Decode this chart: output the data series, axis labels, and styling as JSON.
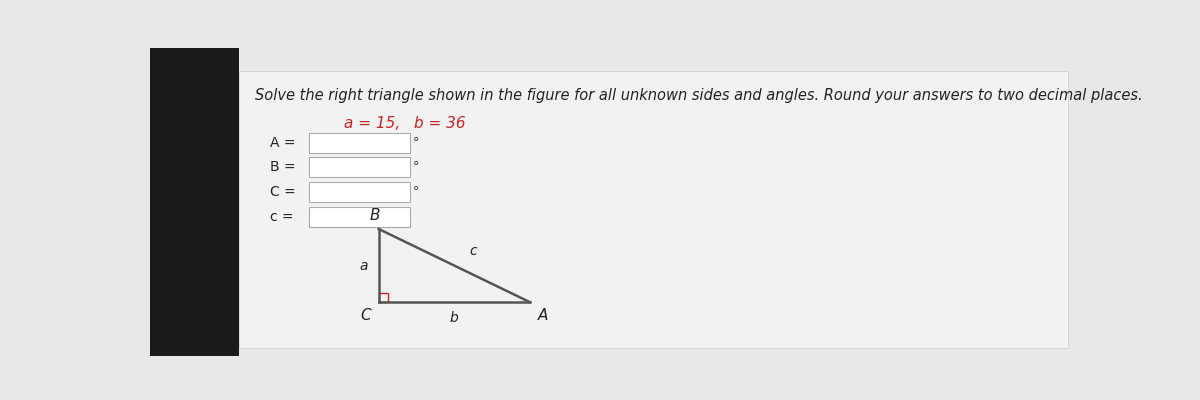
{
  "title": "Solve the right triangle shown in the figure for all unknown sides and angles. Round your answers to two decimal places.",
  "bg_color_left": "#1a1a1a",
  "bg_color_right": "#e8e8e8",
  "white_area_color": "#f0f0f0",
  "box_color": "#ffffff",
  "box_border": "#aaaaaa",
  "given_a_text": "a = 15,",
  "given_b_text": "b = 36",
  "given_color": "#cc2222",
  "labels_left": [
    "A =",
    "B =",
    "C =",
    "c ="
  ],
  "degree_symbols": [
    true,
    true,
    true,
    false
  ],
  "triangle_color": "#555555",
  "right_angle_color": "#cc2222",
  "label_B": "B",
  "label_C": "C",
  "label_A": "A",
  "label_a": "a",
  "label_b": "b",
  "label_c": "c",
  "font_size_title": 10.5,
  "font_size_labels": 10,
  "font_size_given": 11,
  "font_size_triangle_labels": 10,
  "font_size_vertex": 11
}
